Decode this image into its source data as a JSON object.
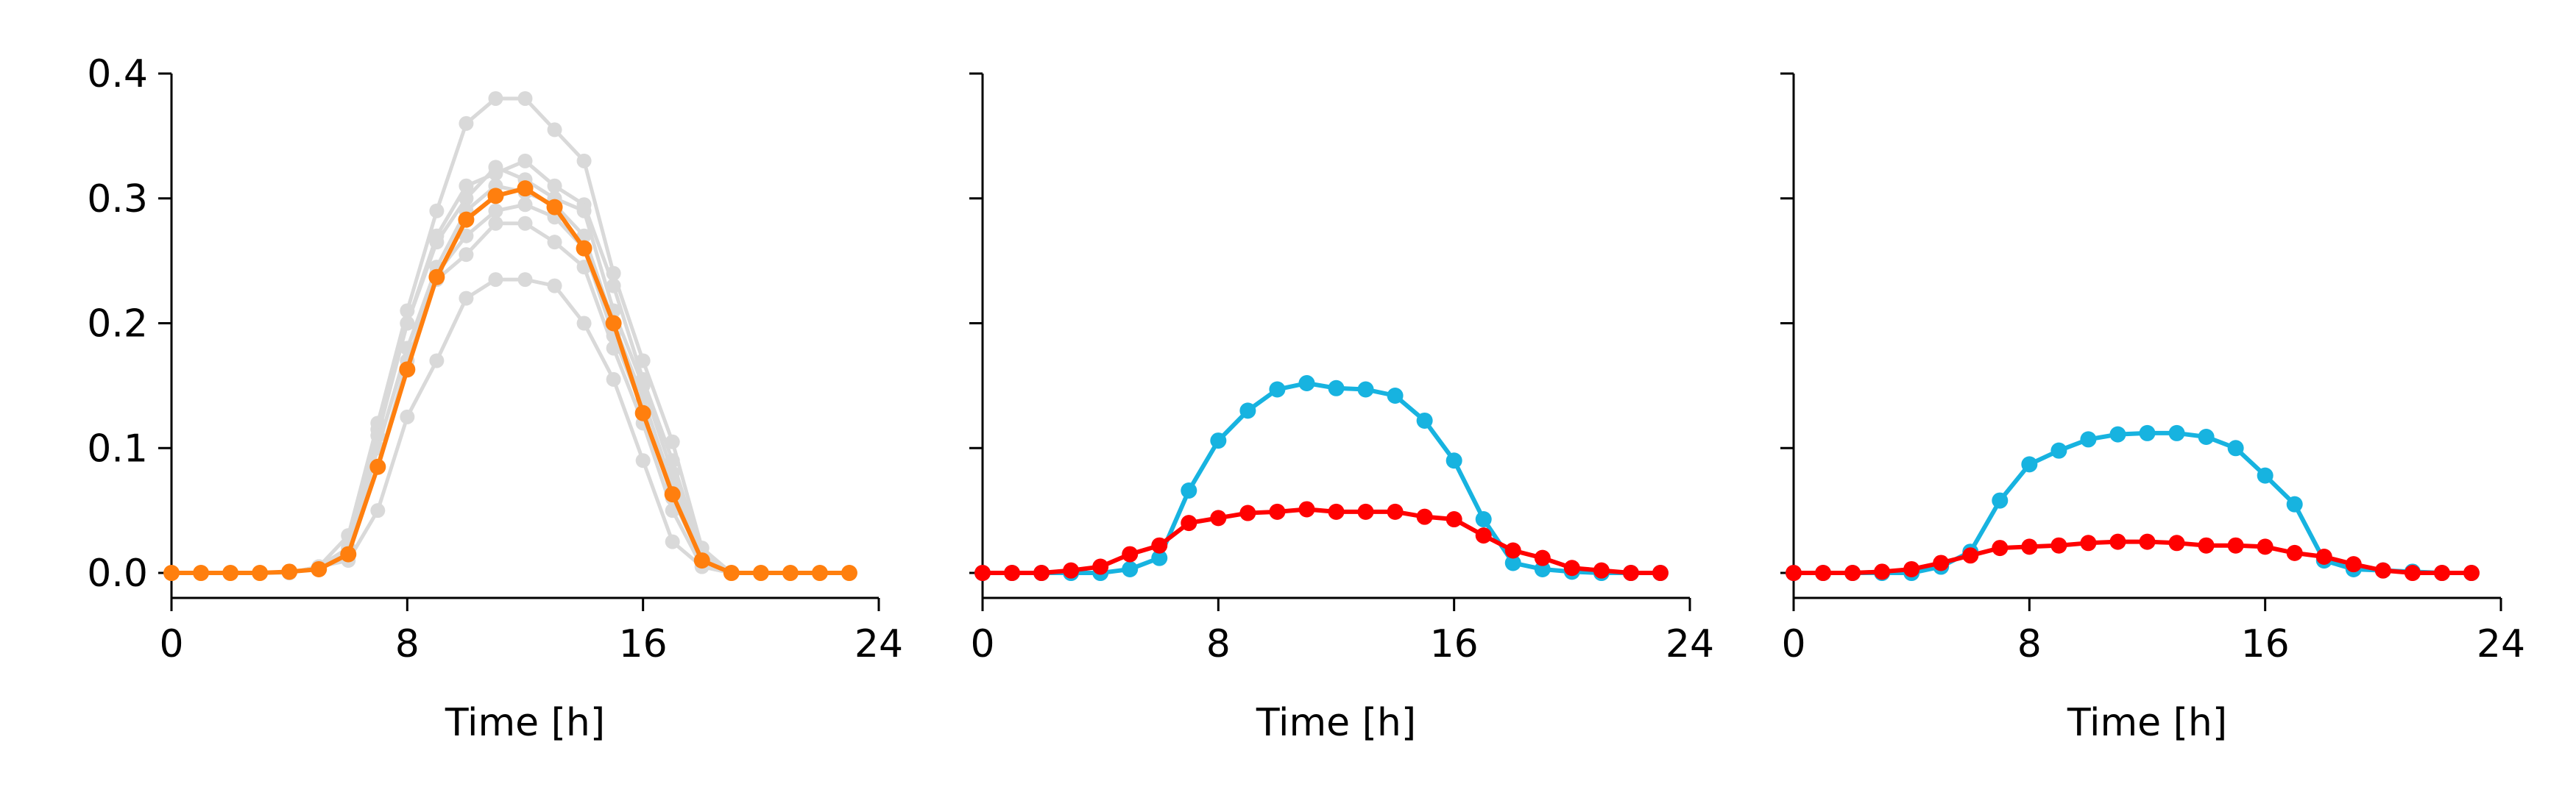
{
  "chart_data": [
    {
      "type": "line",
      "xlabel": "Time [h]",
      "ylabel": "",
      "xlim": [
        0,
        24
      ],
      "ylim": [
        -0.02,
        0.4
      ],
      "xticks": [
        "0",
        "8",
        "16",
        "24"
      ],
      "yticks": [
        "0.0",
        "0.1",
        "0.2",
        "0.3",
        "0.4"
      ],
      "show_yticklabels": true,
      "grid": false,
      "x": [
        0,
        1,
        2,
        3,
        4,
        5,
        6,
        7,
        8,
        9,
        10,
        11,
        12,
        13,
        14,
        15,
        16,
        17,
        18,
        19,
        20,
        21,
        22,
        23
      ],
      "background_series": [
        {
          "color": "#d9d9d9",
          "values": [
            0,
            0,
            0,
            0,
            0,
            0.005,
            0.03,
            0.12,
            0.21,
            0.29,
            0.36,
            0.38,
            0.38,
            0.355,
            0.33,
            0.24,
            0.17,
            0.105,
            0.02,
            0,
            0,
            0,
            0,
            0
          ]
        },
        {
          "color": "#d9d9d9",
          "values": [
            0,
            0,
            0,
            0,
            0,
            0.005,
            0.02,
            0.115,
            0.2,
            0.27,
            0.31,
            0.32,
            0.33,
            0.31,
            0.295,
            0.23,
            0.155,
            0.09,
            0.015,
            0,
            0,
            0,
            0,
            0
          ]
        },
        {
          "color": "#d9d9d9",
          "values": [
            0,
            0,
            0,
            0,
            0,
            0.005,
            0.02,
            0.11,
            0.2,
            0.265,
            0.3,
            0.325,
            0.315,
            0.3,
            0.29,
            0.21,
            0.15,
            0.08,
            0.01,
            0,
            0,
            0,
            0,
            0
          ]
        },
        {
          "color": "#d9d9d9",
          "values": [
            0,
            0,
            0,
            0,
            0,
            0.005,
            0.02,
            0.1,
            0.18,
            0.245,
            0.29,
            0.31,
            0.305,
            0.295,
            0.27,
            0.2,
            0.14,
            0.07,
            0.01,
            0,
            0,
            0,
            0,
            0
          ]
        },
        {
          "color": "#d9d9d9",
          "values": [
            0,
            0,
            0,
            0,
            0,
            0.005,
            0.015,
            0.1,
            0.18,
            0.24,
            0.27,
            0.29,
            0.295,
            0.285,
            0.26,
            0.19,
            0.13,
            0.06,
            0.01,
            0,
            0,
            0,
            0,
            0
          ]
        },
        {
          "color": "#d9d9d9",
          "values": [
            0,
            0,
            0,
            0,
            0,
            0.005,
            0.015,
            0.085,
            0.17,
            0.235,
            0.255,
            0.28,
            0.28,
            0.265,
            0.245,
            0.18,
            0.12,
            0.05,
            0.005,
            0,
            0,
            0,
            0,
            0
          ]
        },
        {
          "color": "#d9d9d9",
          "values": [
            0,
            0,
            0,
            0,
            0,
            0.005,
            0.01,
            0.05,
            0.125,
            0.17,
            0.22,
            0.235,
            0.235,
            0.23,
            0.2,
            0.155,
            0.09,
            0.025,
            0.005,
            0,
            0,
            0,
            0,
            0
          ]
        }
      ],
      "series": [
        {
          "color": "#ff7f0e",
          "values": [
            0,
            0,
            0,
            0,
            0.001,
            0.003,
            0.015,
            0.085,
            0.163,
            0.237,
            0.283,
            0.302,
            0.308,
            0.293,
            0.26,
            0.2,
            0.128,
            0.063,
            0.01,
            0,
            0,
            0,
            0,
            0
          ]
        }
      ]
    },
    {
      "type": "line",
      "xlabel": "Time [h]",
      "ylabel": "",
      "xlim": [
        0,
        24
      ],
      "ylim": [
        -0.02,
        0.4
      ],
      "xticks": [
        "0",
        "8",
        "16",
        "24"
      ],
      "yticks": [
        "0.0",
        "0.1",
        "0.2",
        "0.3",
        "0.4"
      ],
      "show_yticklabels": false,
      "grid": false,
      "x": [
        0,
        1,
        2,
        3,
        4,
        5,
        6,
        7,
        8,
        9,
        10,
        11,
        12,
        13,
        14,
        15,
        16,
        17,
        18,
        19,
        20,
        21,
        22,
        23
      ],
      "background_series": [],
      "series": [
        {
          "color": "#17b3e0",
          "values": [
            0,
            0,
            0,
            0,
            0,
            0.003,
            0.012,
            0.066,
            0.106,
            0.13,
            0.147,
            0.152,
            0.148,
            0.147,
            0.142,
            0.122,
            0.09,
            0.043,
            0.008,
            0.003,
            0.001,
            0,
            0,
            0
          ]
        },
        {
          "color": "#ff0000",
          "values": [
            0,
            0,
            0,
            0.002,
            0.005,
            0.015,
            0.022,
            0.04,
            0.044,
            0.048,
            0.049,
            0.051,
            0.049,
            0.049,
            0.049,
            0.045,
            0.043,
            0.03,
            0.018,
            0.012,
            0.004,
            0.002,
            0,
            0
          ]
        }
      ]
    },
    {
      "type": "line",
      "xlabel": "Time [h]",
      "ylabel": "",
      "xlim": [
        0,
        24
      ],
      "ylim": [
        -0.02,
        0.4
      ],
      "xticks": [
        "0",
        "8",
        "16",
        "24"
      ],
      "yticks": [
        "0.0",
        "0.1",
        "0.2",
        "0.3",
        "0.4"
      ],
      "show_yticklabels": false,
      "grid": false,
      "x": [
        0,
        1,
        2,
        3,
        4,
        5,
        6,
        7,
        8,
        9,
        10,
        11,
        12,
        13,
        14,
        15,
        16,
        17,
        18,
        19,
        20,
        21,
        22,
        23
      ],
      "background_series": [],
      "series": [
        {
          "color": "#17b3e0",
          "values": [
            0,
            0,
            0,
            0,
            0,
            0.005,
            0.017,
            0.058,
            0.087,
            0.098,
            0.107,
            0.111,
            0.112,
            0.112,
            0.109,
            0.1,
            0.078,
            0.055,
            0.01,
            0.003,
            0.002,
            0.001,
            0,
            0
          ]
        },
        {
          "color": "#ff0000",
          "values": [
            0,
            0,
            0,
            0.001,
            0.003,
            0.008,
            0.014,
            0.02,
            0.021,
            0.022,
            0.024,
            0.025,
            0.025,
            0.024,
            0.022,
            0.022,
            0.021,
            0.016,
            0.013,
            0.007,
            0.002,
            0,
            0,
            0
          ]
        }
      ]
    }
  ]
}
